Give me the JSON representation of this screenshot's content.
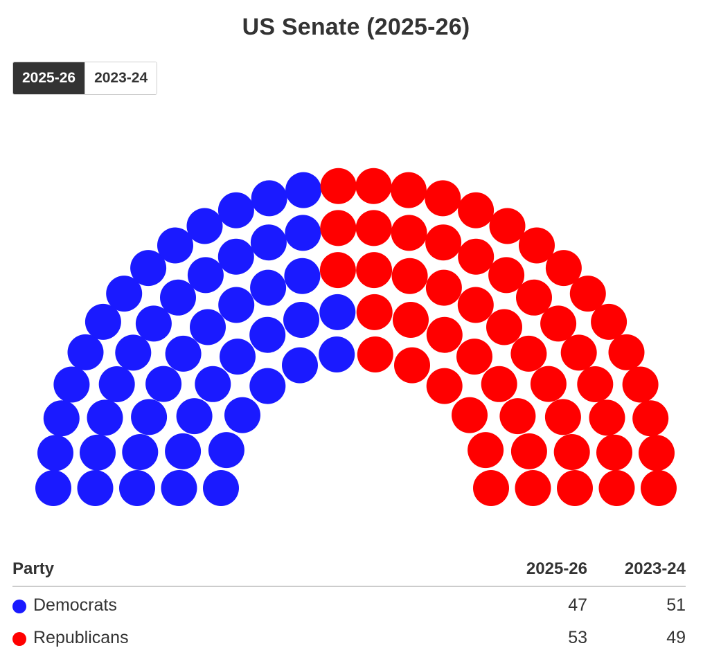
{
  "title": "US Senate (2025-26)",
  "toggle": {
    "options": [
      "2025-26",
      "2023-24"
    ],
    "active": "2025-26"
  },
  "table": {
    "headers": {
      "party": "Party",
      "year1": "2025-26",
      "year2": "2023-24"
    },
    "rows": [
      {
        "party": "Democrats",
        "color": "#1a1aff",
        "year1": "47",
        "year2": "51"
      },
      {
        "party": "Republicans",
        "color": "#ff0000",
        "year1": "53",
        "year2": "49"
      }
    ]
  },
  "chart_data": {
    "type": "parliament",
    "title": "US Senate (2025-26)",
    "total_seats": 100,
    "period": "2025-26",
    "series": [
      {
        "name": "Democrats",
        "seats": 47,
        "color": "#1a1aff"
      },
      {
        "name": "Republicans",
        "seats": 53,
        "color": "#ff0000"
      }
    ]
  }
}
